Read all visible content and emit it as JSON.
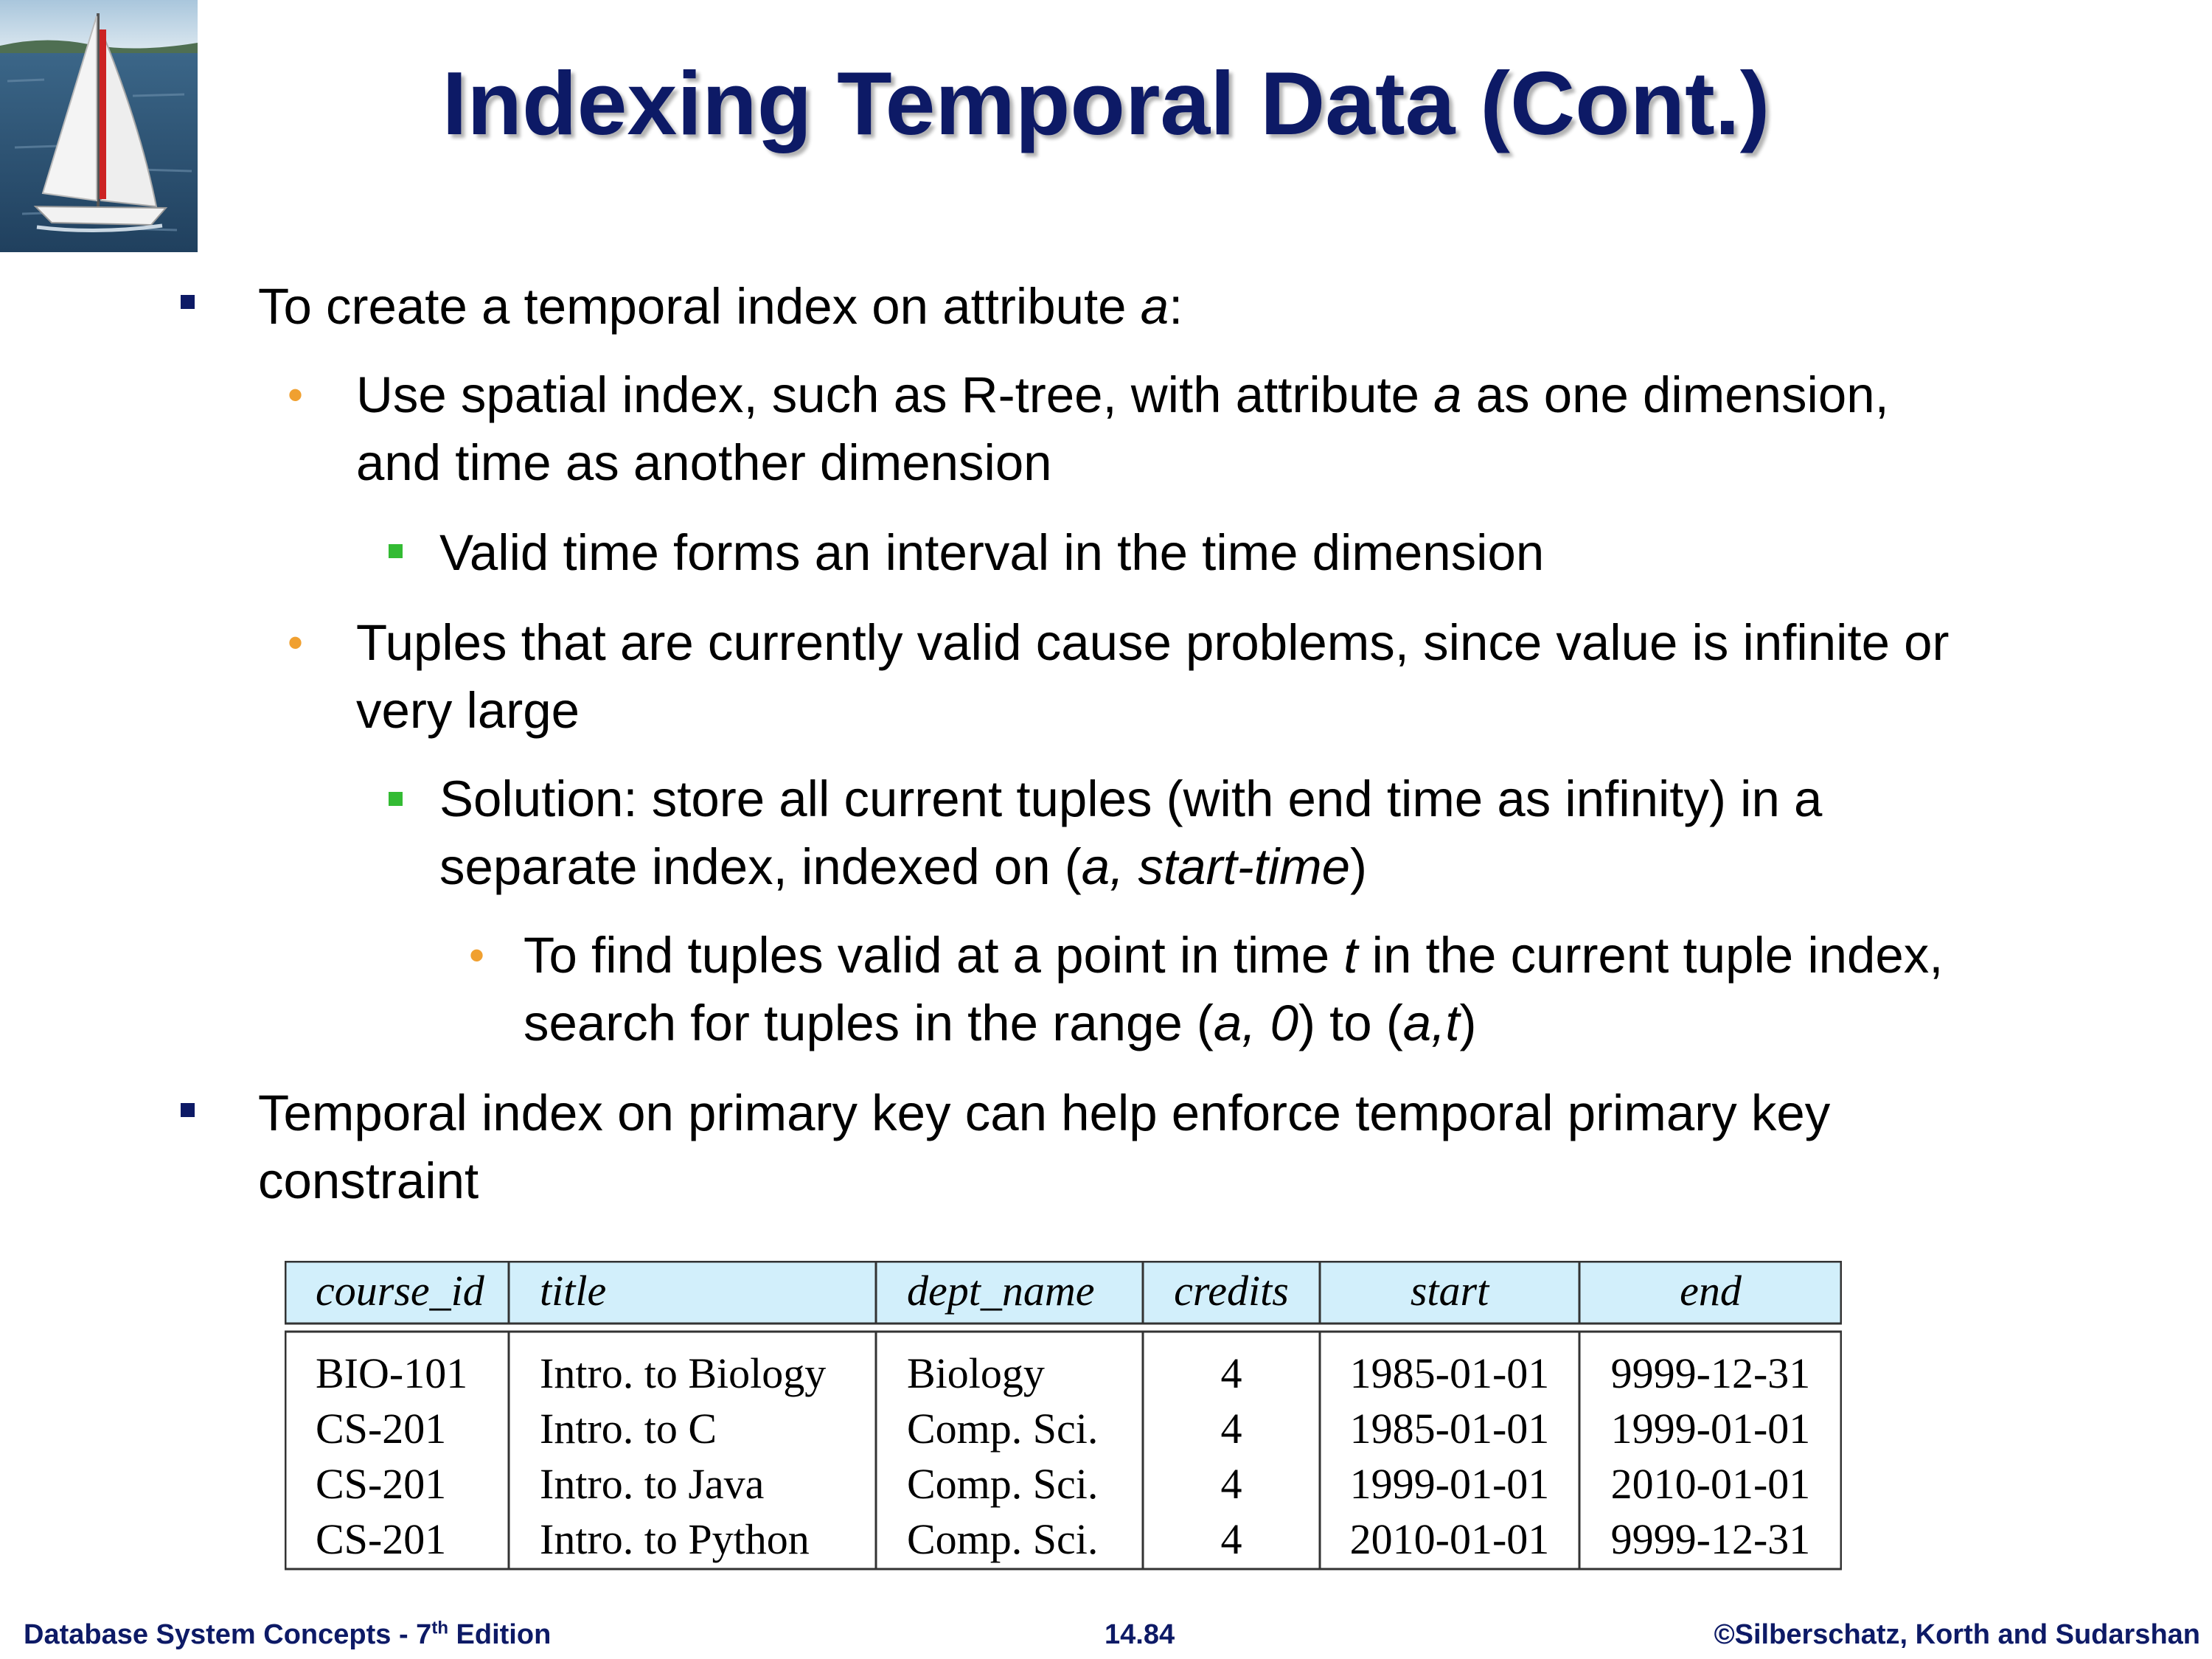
{
  "slide": {
    "title": "Indexing Temporal Data (Cont.)",
    "bullets": [
      {
        "id": "b1",
        "parts": [
          {
            "t": "To create a temporal index on attribute "
          },
          {
            "t": "a",
            "i": true
          },
          {
            "t": ":"
          }
        ]
      },
      {
        "id": "b2",
        "parts": [
          {
            "t": "Use spatial index, such as R-tree, with attribute "
          },
          {
            "t": "a",
            "i": true
          },
          {
            "t": " as one dimension,"
          }
        ],
        "line2": "and time as another dimension"
      },
      {
        "id": "b3",
        "parts": [
          {
            "t": "Valid time forms an interval in the time dimension"
          }
        ]
      },
      {
        "id": "b4",
        "parts": [
          {
            "t": "Tuples that are currently valid cause problems, since value is infinite or"
          }
        ],
        "line2": "very large"
      },
      {
        "id": "b5",
        "parts": [
          {
            "t": "Solution:  store all current tuples (with end time as infinity) in a"
          }
        ],
        "line2_parts": [
          {
            "t": "separate index, indexed on ("
          },
          {
            "t": "a, start-time",
            "i": true
          },
          {
            "t": ")"
          }
        ]
      },
      {
        "id": "b6",
        "parts": [
          {
            "t": "To find tuples valid at a point in time "
          },
          {
            "t": "t",
            "i": true
          },
          {
            "t": " in the current tuple index,"
          }
        ],
        "line2_parts": [
          {
            "t": "search for tuples in the range ("
          },
          {
            "t": "a, 0",
            "i": true
          },
          {
            "t": ") to ("
          },
          {
            "t": "a,t",
            "i": true
          },
          {
            "t": ")"
          }
        ]
      },
      {
        "id": "b7",
        "parts": [
          {
            "t": "Temporal index on primary key can help enforce temporal primary key"
          }
        ],
        "line2": "constraint"
      }
    ]
  },
  "table": {
    "headers": [
      "course_id",
      "title",
      "dept_name",
      "credits",
      "start",
      "end"
    ],
    "rows": [
      [
        "BIO-101",
        "Intro. to Biology",
        "Biology",
        "4",
        "1985-01-01",
        "9999-12-31"
      ],
      [
        "CS-201",
        "Intro. to C",
        "Comp. Sci.",
        "4",
        "1985-01-01",
        "1999-01-01"
      ],
      [
        "CS-201",
        "Intro. to Java",
        "Comp. Sci.",
        "4",
        "1999-01-01",
        "2010-01-01"
      ],
      [
        "CS-201",
        "Intro. to Python",
        "Comp. Sci.",
        "4",
        "2010-01-01",
        "9999-12-31"
      ]
    ],
    "header_bg": "#d2effb"
  },
  "footer": {
    "left": "Database System Concepts - 7",
    "left_sup": "th",
    "left_tail": " Edition",
    "center": "14.84",
    "right": "©Silberschatz, Korth and Sudarshan"
  },
  "colors": {
    "title": "#0d1a66",
    "level1_bullet": "#0d1a66",
    "level2_bullet": "#f0a030",
    "level3_bullet": "#33bb33"
  },
  "logo": {
    "icon": "sailboat-icon"
  }
}
